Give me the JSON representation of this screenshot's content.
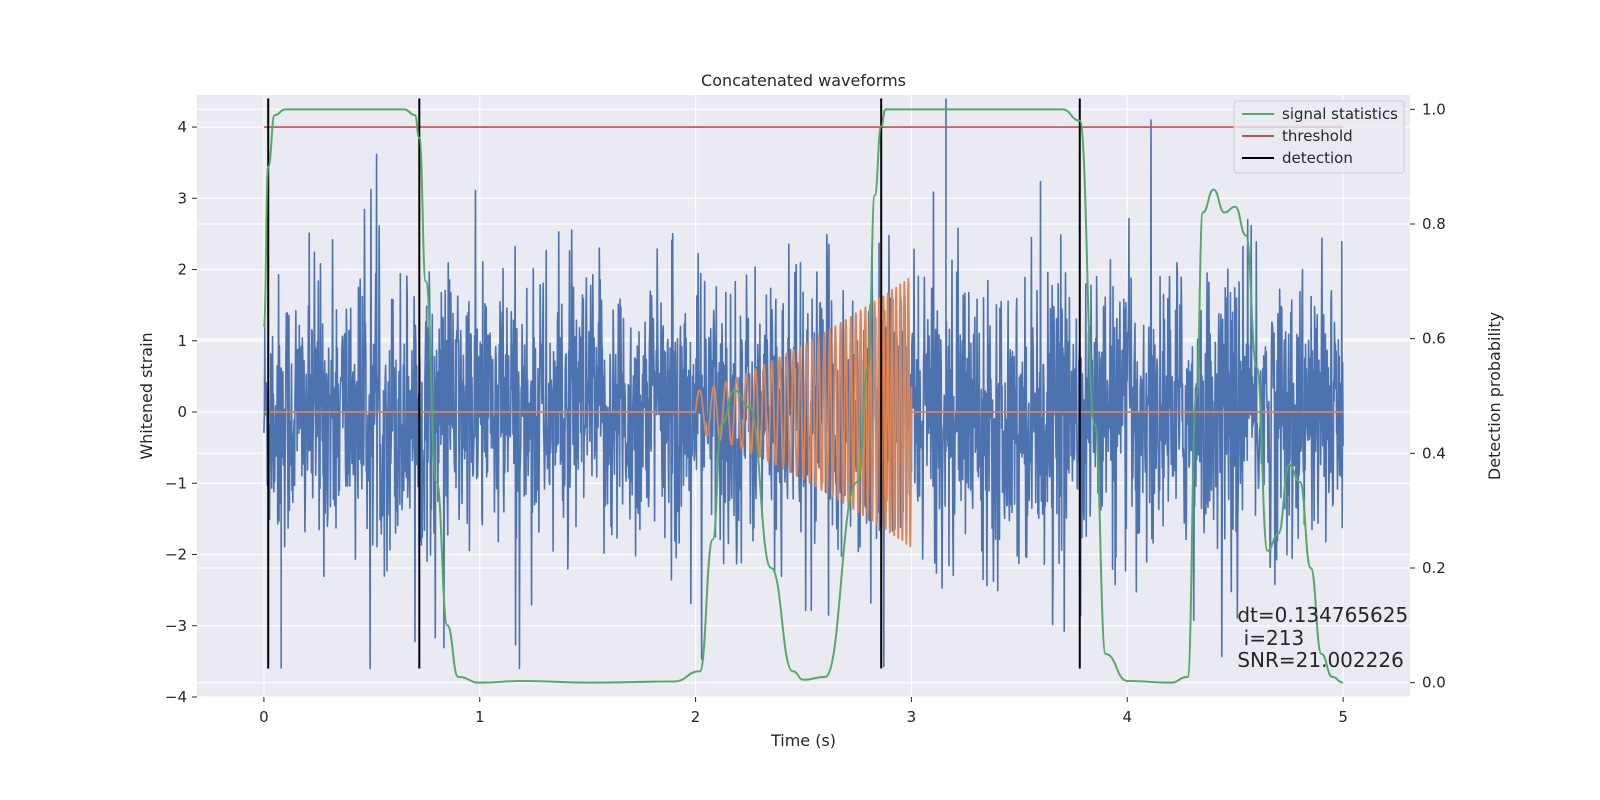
{
  "chart_data": {
    "type": "line",
    "title": "Concatenated waveforms",
    "xlabel": "Time (s)",
    "ylabel": "Whitened strain",
    "y2label": "Detection probability",
    "xlim": [
      -0.31,
      5.31
    ],
    "ylim": [
      -4.0,
      4.45
    ],
    "y2lim": [
      -0.025,
      1.025
    ],
    "x_ticks": [
      0,
      1,
      2,
      3,
      4,
      5
    ],
    "y_ticks": [
      -4,
      -3,
      -2,
      -1,
      0,
      1,
      2,
      3,
      4
    ],
    "y2_ticks": [
      0.0,
      0.2,
      0.4,
      0.6,
      0.8,
      1.0
    ],
    "x_tick_labels": [
      "0",
      "1",
      "2",
      "3",
      "4",
      "5"
    ],
    "y_tick_labels": [
      "−4",
      "−3",
      "−2",
      "−1",
      "0",
      "1",
      "2",
      "3",
      "4"
    ],
    "y2_tick_labels": [
      "0.0",
      "0.2",
      "0.4",
      "0.6",
      "0.8",
      "1.0"
    ],
    "grid": true,
    "legend_position": "top-right",
    "series": [
      {
        "name": "",
        "kind": "noise",
        "color": "#4c72b0",
        "axis": "left",
        "x_range": [
          0,
          5
        ],
        "approx_amplitude": [
          -3.6,
          4.4
        ],
        "notable_peaks": [
          {
            "x": 3.16,
            "y": 4.4
          },
          {
            "x": 0.08,
            "y": -3.6
          }
        ]
      },
      {
        "name": "",
        "kind": "chirp",
        "color": "#dd8452",
        "axis": "left",
        "baseline": 0,
        "chirp_start": 2.0,
        "chirp_end": 3.0,
        "amplitude_start": 0.3,
        "amplitude_end": 1.9
      },
      {
        "name": "signal statistics",
        "color": "#55a868",
        "axis": "right",
        "x": [
          0.0,
          0.02,
          0.05,
          0.1,
          0.3,
          0.5,
          0.65,
          0.7,
          0.72,
          0.75,
          0.8,
          0.85,
          0.9,
          1.0,
          1.2,
          1.5,
          1.9,
          2.02,
          2.08,
          2.12,
          2.18,
          2.25,
          2.35,
          2.45,
          2.5,
          2.6,
          2.75,
          2.8,
          2.83,
          2.86,
          2.88,
          2.92,
          3.0,
          3.5,
          3.7,
          3.78,
          3.85,
          3.9,
          4.0,
          4.2,
          4.28,
          4.32,
          4.35,
          4.4,
          4.45,
          4.5,
          4.55,
          4.6,
          4.65,
          4.7,
          4.75,
          4.8,
          4.85,
          4.9,
          4.95,
          5.0
        ],
        "values": [
          0.62,
          0.9,
          0.99,
          1.0,
          1.0,
          1.0,
          1.0,
          0.99,
          0.95,
          0.7,
          0.35,
          0.1,
          0.01,
          0.0,
          0.003,
          0.0,
          0.002,
          0.02,
          0.25,
          0.45,
          0.51,
          0.48,
          0.2,
          0.02,
          0.005,
          0.01,
          0.35,
          0.55,
          0.85,
          0.97,
          1.0,
          1.0,
          1.0,
          1.0,
          1.0,
          0.98,
          0.45,
          0.05,
          0.003,
          0.0,
          0.01,
          0.5,
          0.82,
          0.86,
          0.82,
          0.83,
          0.78,
          0.55,
          0.23,
          0.26,
          0.38,
          0.35,
          0.2,
          0.05,
          0.01,
          0.0
        ]
      },
      {
        "name": "threshold",
        "color": "#c44e52",
        "axis": "left",
        "x": [
          0,
          5
        ],
        "values": [
          4,
          4
        ]
      },
      {
        "name": "detection",
        "color": "#000000",
        "kind": "vlines",
        "x": [
          0.02,
          0.72,
          2.86,
          3.78
        ],
        "y_range": [
          -3.6,
          4.4
        ]
      }
    ],
    "annotations": [
      {
        "text": "dt=0.134765625",
        "x": 4.51,
        "y": -2.85
      },
      {
        "text": " i=213",
        "x": 4.51,
        "y": -3.17
      },
      {
        "text": "SNR=21.002226",
        "x": 4.51,
        "y": -3.48
      }
    ]
  },
  "colors": {
    "axes_background": "#eaeaf2",
    "grid": "#ffffff"
  }
}
